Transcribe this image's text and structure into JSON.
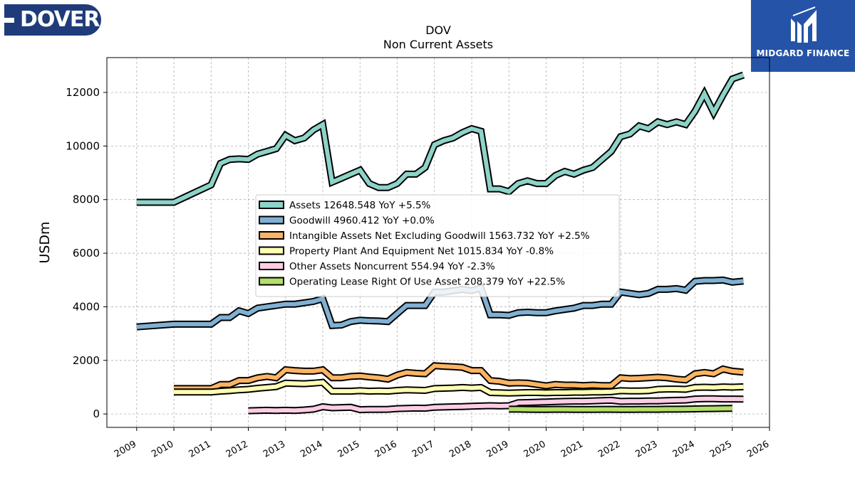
{
  "branding": {
    "left_logo_text": "DOVER",
    "right_logo_text": "MIDGARD FINANCE",
    "left_logo_color": "#1f3b7a",
    "right_logo_color": "#2553a7"
  },
  "chart_data": {
    "type": "line",
    "title": "DOV",
    "subtitle": "Non Current  Assets",
    "xlabel": "",
    "ylabel": "USDm",
    "xlim": [
      2008.2,
      2026.0
    ],
    "ylim": [
      -500,
      13300
    ],
    "x_ticks": [
      "2009",
      "2010",
      "2011",
      "2012",
      "2013",
      "2014",
      "2015",
      "2016",
      "2017",
      "2018",
      "2019",
      "2020",
      "2021",
      "2022",
      "2023",
      "2024",
      "2025",
      "2026"
    ],
    "y_ticks": [
      0,
      2000,
      4000,
      6000,
      8000,
      10000,
      12000
    ],
    "grid": true,
    "legend_position": "center",
    "series": [
      {
        "name": "Assets  12648.548 YoY +5.5%",
        "color": "#8dd3c7",
        "x": [
          2009.0,
          2010.0,
          2011.0,
          2011.25,
          2011.5,
          2011.75,
          2012.0,
          2012.25,
          2012.5,
          2012.75,
          2013.0,
          2013.25,
          2013.5,
          2013.75,
          2014.0,
          2014.25,
          2014.5,
          2014.75,
          2015.0,
          2015.25,
          2015.5,
          2015.75,
          2016.0,
          2016.25,
          2016.5,
          2016.75,
          2017.0,
          2017.25,
          2017.5,
          2017.75,
          2018.0,
          2018.25,
          2018.5,
          2018.75,
          2019.0,
          2019.25,
          2019.5,
          2019.75,
          2020.0,
          2020.25,
          2020.5,
          2020.75,
          2021.0,
          2021.25,
          2021.5,
          2021.75,
          2022.0,
          2022.25,
          2022.5,
          2022.75,
          2023.0,
          2023.25,
          2023.5,
          2023.75,
          2024.0,
          2024.25,
          2024.5,
          2024.75,
          2025.0,
          2025.3
        ],
        "values": [
          7900,
          7900,
          8550,
          9350,
          9500,
          9520,
          9500,
          9700,
          9800,
          9900,
          10400,
          10200,
          10300,
          10600,
          10800,
          8650,
          8800,
          8950,
          9100,
          8600,
          8450,
          8450,
          8600,
          8950,
          8950,
          9200,
          10050,
          10200,
          10300,
          10500,
          10650,
          10550,
          8400,
          8400,
          8300,
          8600,
          8700,
          8600,
          8600,
          8900,
          9050,
          8950,
          9100,
          9200,
          9500,
          9800,
          10350,
          10450,
          10750,
          10650,
          10900,
          10800,
          10900,
          10800,
          11300,
          11950,
          11250,
          11900,
          12500,
          12650
        ]
      },
      {
        "name": "Goodwill  4960.412 YoY +0.0%",
        "color": "#80b1d3",
        "x": [
          2009.0,
          2010.0,
          2011.0,
          2011.25,
          2011.5,
          2011.75,
          2012.0,
          2012.25,
          2012.5,
          2012.75,
          2013.0,
          2013.25,
          2013.5,
          2013.75,
          2014.0,
          2014.25,
          2014.5,
          2014.75,
          2015.0,
          2015.25,
          2015.5,
          2015.75,
          2016.0,
          2016.25,
          2016.5,
          2016.75,
          2017.0,
          2017.25,
          2017.5,
          2017.75,
          2018.0,
          2018.25,
          2018.5,
          2018.75,
          2019.0,
          2019.25,
          2019.5,
          2019.75,
          2020.0,
          2020.25,
          2020.5,
          2020.75,
          2021.0,
          2021.25,
          2021.5,
          2021.75,
          2022.0,
          2022.25,
          2022.5,
          2022.75,
          2023.0,
          2023.25,
          2023.5,
          2023.75,
          2024.0,
          2024.25,
          2024.5,
          2024.75,
          2025.0,
          2025.3
        ],
        "values": [
          3250,
          3350,
          3350,
          3600,
          3600,
          3850,
          3750,
          3950,
          4000,
          4050,
          4100,
          4100,
          4150,
          4200,
          4300,
          3300,
          3320,
          3450,
          3500,
          3480,
          3470,
          3450,
          3750,
          4050,
          4050,
          4050,
          4550,
          4550,
          4600,
          4650,
          4600,
          4700,
          3700,
          3700,
          3680,
          3780,
          3800,
          3780,
          3780,
          3850,
          3900,
          3950,
          4050,
          4050,
          4100,
          4100,
          4550,
          4500,
          4450,
          4500,
          4650,
          4650,
          4680,
          4620,
          4950,
          4980,
          4980,
          5000,
          4920,
          4960
        ]
      },
      {
        "name": "Intangible Assets Net Excluding Goodwill  1563.732 YoY +2.5%",
        "color": "#fdb462",
        "x": [
          2010.0,
          2011.0,
          2011.25,
          2011.5,
          2011.75,
          2012.0,
          2012.25,
          2012.5,
          2012.75,
          2013.0,
          2013.25,
          2013.5,
          2013.75,
          2014.0,
          2014.25,
          2014.5,
          2014.75,
          2015.0,
          2015.25,
          2015.5,
          2015.75,
          2016.0,
          2016.25,
          2016.5,
          2016.75,
          2017.0,
          2017.25,
          2017.5,
          2017.75,
          2018.0,
          2018.25,
          2018.5,
          2018.75,
          2019.0,
          2019.25,
          2019.5,
          2019.75,
          2020.0,
          2020.25,
          2020.5,
          2020.75,
          2021.0,
          2021.25,
          2021.5,
          2021.75,
          2022.0,
          2022.25,
          2022.5,
          2022.75,
          2023.0,
          2023.25,
          2023.5,
          2023.75,
          2024.0,
          2024.25,
          2024.5,
          2024.75,
          2025.0,
          2025.3
        ],
        "values": [
          950,
          950,
          1100,
          1100,
          1250,
          1250,
          1350,
          1400,
          1350,
          1650,
          1620,
          1600,
          1600,
          1650,
          1350,
          1350,
          1400,
          1420,
          1380,
          1350,
          1300,
          1450,
          1550,
          1520,
          1500,
          1800,
          1780,
          1760,
          1740,
          1620,
          1620,
          1250,
          1220,
          1150,
          1160,
          1150,
          1100,
          1050,
          1100,
          1080,
          1080,
          1060,
          1080,
          1060,
          1060,
          1350,
          1320,
          1330,
          1350,
          1370,
          1350,
          1300,
          1270,
          1500,
          1550,
          1500,
          1680,
          1600,
          1560
        ]
      },
      {
        "name": "Property Plant And Equipment Net  1015.834 YoY -0.8%",
        "color": "#ffffb3",
        "x": [
          2010.0,
          2011.0,
          2011.25,
          2011.5,
          2011.75,
          2012.0,
          2012.25,
          2012.5,
          2012.75,
          2013.0,
          2013.25,
          2013.5,
          2013.75,
          2014.0,
          2014.25,
          2014.5,
          2014.75,
          2015.0,
          2015.25,
          2015.5,
          2015.75,
          2016.0,
          2016.25,
          2016.5,
          2016.75,
          2017.0,
          2017.25,
          2017.5,
          2017.75,
          2018.0,
          2018.25,
          2018.5,
          2018.75,
          2019.0,
          2019.25,
          2019.5,
          2019.75,
          2020.0,
          2020.25,
          2020.5,
          2020.75,
          2021.0,
          2021.25,
          2021.5,
          2021.75,
          2022.0,
          2022.25,
          2022.5,
          2022.75,
          2023.0,
          2023.25,
          2023.5,
          2023.75,
          2024.0,
          2024.25,
          2024.5,
          2024.75,
          2025.0,
          2025.3
        ],
        "values": [
          820,
          820,
          850,
          870,
          900,
          920,
          960,
          990,
          1020,
          1150,
          1140,
          1130,
          1150,
          1180,
          850,
          850,
          850,
          870,
          850,
          860,
          850,
          880,
          900,
          890,
          880,
          950,
          960,
          970,
          990,
          970,
          990,
          800,
          790,
          780,
          790,
          800,
          800,
          790,
          800,
          800,
          810,
          810,
          820,
          820,
          830,
          870,
          860,
          860,
          870,
          920,
          930,
          930,
          920,
          990,
          1000,
          990,
          1010,
          1000,
          1015
        ]
      },
      {
        "name": "Other Assets Noncurrent  554.94 YoY -2.3%",
        "color": "#fccde5",
        "x": [
          2012.0,
          2012.25,
          2012.5,
          2012.75,
          2013.0,
          2013.25,
          2013.5,
          2013.75,
          2014.0,
          2014.25,
          2014.5,
          2014.75,
          2015.0,
          2015.25,
          2015.5,
          2015.75,
          2016.0,
          2016.25,
          2016.5,
          2016.75,
          2017.0,
          2017.25,
          2017.5,
          2017.75,
          2018.0,
          2018.25,
          2018.5,
          2018.75,
          2019.0,
          2019.25,
          2019.5,
          2019.75,
          2020.0,
          2020.25,
          2020.5,
          2020.75,
          2021.0,
          2021.25,
          2021.5,
          2021.75,
          2022.0,
          2022.25,
          2022.5,
          2022.75,
          2023.0,
          2023.25,
          2023.5,
          2023.75,
          2024.0,
          2024.25,
          2024.5,
          2024.75,
          2025.0,
          2025.3
        ],
        "values": [
          120,
          130,
          140,
          130,
          140,
          130,
          150,
          180,
          270,
          230,
          240,
          250,
          160,
          170,
          170,
          175,
          200,
          210,
          220,
          215,
          250,
          260,
          270,
          275,
          290,
          300,
          310,
          300,
          310,
          420,
          430,
          440,
          450,
          460,
          470,
          480,
          480,
          490,
          500,
          510,
          470,
          480,
          480,
          490,
          490,
          500,
          510,
          520,
          560,
          570,
          570,
          560,
          560,
          555
        ]
      },
      {
        "name": "Operating Lease Right Of Use Asset  208.379 YoY +22.5%",
        "color": "#b3de69",
        "x": [
          2019.0,
          2019.25,
          2019.5,
          2019.75,
          2020.0,
          2020.25,
          2020.5,
          2020.75,
          2021.0,
          2021.25,
          2021.5,
          2021.75,
          2022.0,
          2022.25,
          2022.5,
          2022.75,
          2023.0,
          2023.25,
          2023.5,
          2023.75,
          2024.0,
          2024.25,
          2024.5,
          2024.75,
          2025.0
        ],
        "values": [
          180,
          180,
          175,
          170,
          170,
          175,
          175,
          170,
          170,
          170,
          175,
          175,
          170,
          170,
          175,
          175,
          175,
          180,
          180,
          185,
          190,
          195,
          200,
          205,
          208
        ]
      }
    ]
  }
}
